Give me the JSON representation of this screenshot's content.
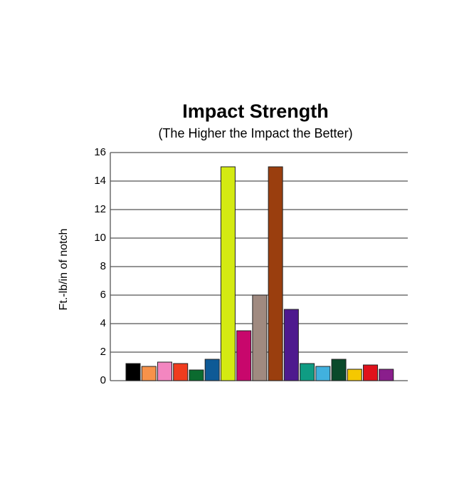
{
  "chart_data": {
    "type": "bar",
    "title": "Impact Strength",
    "subtitle": "(The Higher the Impact the Better)",
    "y_label": "Ft.-lb/in of notch",
    "categories": [
      null,
      null,
      null,
      null,
      null,
      null,
      null,
      null,
      null,
      null,
      null,
      null,
      null,
      null,
      null,
      null,
      null
    ],
    "values": [
      1.2,
      1.0,
      1.3,
      1.2,
      0.75,
      1.5,
      15,
      3.5,
      6,
      15,
      5,
      1.2,
      1.0,
      1.5,
      0.8,
      1.1,
      0.8
    ],
    "colors": [
      "#000000",
      "#f7924a",
      "#f386c0",
      "#f03c1e",
      "#0b6b2f",
      "#0e5a96",
      "#d4ea12",
      "#c8076c",
      "#a08a80",
      "#9a3e0e",
      "#4e1a8e",
      "#0f9c83",
      "#41b1de",
      "#0a4a2a",
      "#f5c800",
      "#e0121b",
      "#8a1e8c"
    ],
    "ylim": [
      0,
      16
    ],
    "yticks": [
      0,
      2,
      4,
      6,
      8,
      10,
      12,
      14,
      16
    ],
    "grid": true
  }
}
